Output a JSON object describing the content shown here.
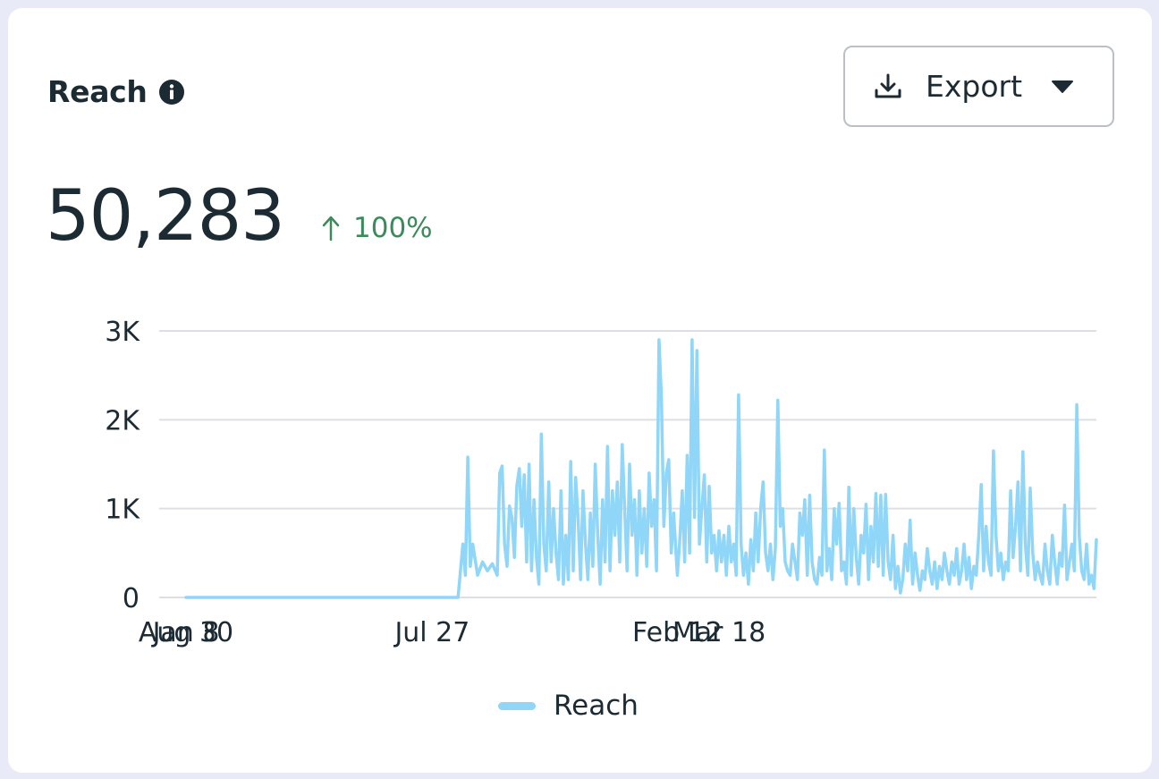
{
  "card": {
    "title": "Reach",
    "metric_value": "50,283",
    "delta": "100%",
    "export_label": "Export"
  },
  "colors": {
    "line": "#8fd6f8",
    "grid": "#dcdfe3",
    "positive": "#3b8a5a",
    "text": "#1c2b33"
  },
  "icons": [
    "info-icon",
    "download-icon",
    "caret-down-icon",
    "arrow-up-icon"
  ],
  "chart_data": {
    "type": "line",
    "title": "",
    "xlabel": "",
    "ylabel": "",
    "ylim": [
      0,
      3000
    ],
    "yticks": [
      0,
      1000,
      2000,
      3000
    ],
    "ytick_labels": [
      "0",
      "1K",
      "2K",
      "3K"
    ],
    "xticks": [
      "Jan 8",
      "Jul 27",
      "Feb 12",
      "Aug 30",
      "Mar 18"
    ],
    "grid": true,
    "legend_position": "bottom",
    "series": [
      {
        "name": "Reach",
        "points": [
          [
            "Jan 8",
            0
          ],
          [
            "Jul 27",
            0
          ],
          [
            "Aug 17",
            0
          ],
          [
            "Aug 19",
            300
          ],
          [
            "Aug 21",
            600
          ],
          [
            "Aug 23",
            250
          ],
          [
            "Aug 25",
            1580
          ],
          [
            "Aug 27",
            350
          ],
          [
            "Aug 29",
            600
          ],
          [
            "Sep 2",
            250
          ],
          [
            "Sep 6",
            400
          ],
          [
            "Sep 10",
            300
          ],
          [
            "Sep 14",
            380
          ],
          [
            "Sep 18",
            250
          ],
          [
            "Sep 20",
            1400
          ],
          [
            "Sep 22",
            1480
          ],
          [
            "Sep 24",
            600
          ],
          [
            "Sep 26",
            350
          ],
          [
            "Sep 28",
            1030
          ],
          [
            "Sep 30",
            900
          ],
          [
            "Oct 2",
            450
          ],
          [
            "Oct 4",
            1250
          ],
          [
            "Oct 6",
            1450
          ],
          [
            "Oct 8",
            800
          ],
          [
            "Oct 10",
            1380
          ],
          [
            "Oct 12",
            400
          ],
          [
            "Oct 14",
            1500
          ],
          [
            "Oct 16",
            300
          ],
          [
            "Oct 18",
            1100
          ],
          [
            "Oct 20",
            450
          ],
          [
            "Oct 22",
            150
          ],
          [
            "Oct 24",
            1840
          ],
          [
            "Oct 26",
            600
          ],
          [
            "Oct 28",
            300
          ],
          [
            "Oct 30",
            1300
          ],
          [
            "Nov 1",
            400
          ],
          [
            "Nov 3",
            1000
          ],
          [
            "Nov 5",
            500
          ],
          [
            "Nov 7",
            200
          ],
          [
            "Nov 9",
            1200
          ],
          [
            "Nov 11",
            150
          ],
          [
            "Nov 13",
            700
          ],
          [
            "Nov 15",
            200
          ],
          [
            "Nov 17",
            1530
          ],
          [
            "Nov 19",
            300
          ],
          [
            "Nov 21",
            1350
          ],
          [
            "Nov 23",
            900
          ],
          [
            "Nov 25",
            200
          ],
          [
            "Nov 27",
            1200
          ],
          [
            "Nov 29",
            600
          ],
          [
            "Dec 1",
            200
          ],
          [
            "Dec 3",
            950
          ],
          [
            "Dec 5",
            350
          ],
          [
            "Dec 7",
            1500
          ],
          [
            "Dec 9",
            700
          ],
          [
            "Dec 11",
            150
          ],
          [
            "Dec 13",
            1100
          ],
          [
            "Dec 15",
            400
          ],
          [
            "Dec 17",
            1700
          ],
          [
            "Dec 19",
            300
          ],
          [
            "Dec 21",
            1200
          ],
          [
            "Dec 23",
            700
          ],
          [
            "Dec 25",
            1300
          ],
          [
            "Dec 27",
            400
          ],
          [
            "Dec 29",
            1720
          ],
          [
            "Dec 31",
            1000
          ],
          [
            "Jan 2",
            300
          ],
          [
            "Jan 4",
            1500
          ],
          [
            "Jan 6",
            700
          ],
          [
            "Jan 8",
            1100
          ],
          [
            "Jan 10",
            250
          ],
          [
            "Jan 12",
            1200
          ],
          [
            "Jan 14",
            500
          ],
          [
            "Jan 16",
            1000
          ],
          [
            "Jan 18",
            350
          ],
          [
            "Jan 20",
            1400
          ],
          [
            "Jan 22",
            800
          ],
          [
            "Jan 24",
            1100
          ],
          [
            "Jan 26",
            300
          ],
          [
            "Jan 28",
            2900
          ],
          [
            "Jan 30",
            2250
          ],
          [
            "Feb 1",
            800
          ],
          [
            "Feb 3",
            1400
          ],
          [
            "Feb 5",
            1550
          ],
          [
            "Feb 7",
            500
          ],
          [
            "Feb 9",
            950
          ],
          [
            "Feb 12",
            250
          ],
          [
            "Feb 14",
            650
          ],
          [
            "Feb 16",
            1200
          ],
          [
            "Feb 18",
            400
          ],
          [
            "Feb 20",
            1600
          ],
          [
            "Feb 22",
            500
          ],
          [
            "Feb 24",
            2900
          ],
          [
            "Feb 26",
            900
          ],
          [
            "Feb 28",
            2780
          ],
          [
            "Mar 2",
            600
          ],
          [
            "Mar 4",
            1000
          ],
          [
            "Mar 6",
            1380
          ],
          [
            "Mar 8",
            400
          ],
          [
            "Mar 10",
            1250
          ],
          [
            "Mar 12",
            500
          ],
          [
            "Mar 14",
            700
          ],
          [
            "Mar 16",
            300
          ],
          [
            "Mar 18",
            750
          ],
          [
            "Mar 20",
            400
          ],
          [
            "Mar 22",
            700
          ],
          [
            "Mar 24",
            250
          ],
          [
            "Mar 26",
            800
          ],
          [
            "Mar 28",
            400
          ],
          [
            "Mar 30",
            600
          ],
          [
            "Apr 1",
            250
          ],
          [
            "Apr 3",
            2280
          ],
          [
            "Apr 5",
            600
          ],
          [
            "Apr 7",
            250
          ],
          [
            "Apr 9",
            500
          ],
          [
            "Apr 11",
            150
          ],
          [
            "Apr 13",
            650
          ],
          [
            "Apr 15",
            300
          ],
          [
            "Apr 17",
            950
          ],
          [
            "Apr 19",
            400
          ],
          [
            "Apr 21",
            1000
          ],
          [
            "Apr 23",
            1300
          ],
          [
            "Apr 25",
            500
          ],
          [
            "Apr 27",
            300
          ],
          [
            "Apr 29",
            600
          ],
          [
            "May 1",
            200
          ],
          [
            "May 3",
            550
          ],
          [
            "May 5",
            2220
          ],
          [
            "May 7",
            800
          ],
          [
            "May 9",
            1000
          ],
          [
            "May 11",
            400
          ],
          [
            "May 13",
            300
          ],
          [
            "May 15",
            250
          ],
          [
            "May 17",
            600
          ],
          [
            "May 19",
            400
          ],
          [
            "May 21",
            200
          ],
          [
            "May 23",
            950
          ],
          [
            "May 25",
            700
          ],
          [
            "May 27",
            1100
          ],
          [
            "May 29",
            250
          ],
          [
            "May 31",
            1150
          ],
          [
            "Jun 2",
            400
          ],
          [
            "Jun 4",
            200
          ],
          [
            "Jun 6",
            150
          ],
          [
            "Jun 8",
            450
          ],
          [
            "Jun 10",
            250
          ],
          [
            "Jun 12",
            1660
          ],
          [
            "Jun 14",
            300
          ],
          [
            "Jun 16",
            550
          ],
          [
            "Jun 18",
            200
          ],
          [
            "Jun 20",
            1000
          ],
          [
            "Jun 22",
            600
          ],
          [
            "Jun 24",
            1060
          ],
          [
            "Jun 26",
            300
          ],
          [
            "Jun 28",
            400
          ],
          [
            "Jun 30",
            150
          ],
          [
            "Jul 2",
            1240
          ],
          [
            "Jul 4",
            250
          ],
          [
            "Jul 6",
            1000
          ],
          [
            "Jul 8",
            450
          ],
          [
            "Jul 10",
            150
          ],
          [
            "Jul 12",
            700
          ],
          [
            "Jul 14",
            500
          ],
          [
            "Jul 16",
            1050
          ],
          [
            "Jul 18",
            200
          ],
          [
            "Jul 20",
            800
          ],
          [
            "Jul 22",
            400
          ],
          [
            "Jul 24",
            1170
          ],
          [
            "Jul 26",
            350
          ],
          [
            "Jul 28",
            1150
          ],
          [
            "Jul 30",
            250
          ],
          [
            "Aug 1",
            1160
          ],
          [
            "Aug 3",
            400
          ],
          [
            "Aug 5",
            200
          ],
          [
            "Aug 7",
            700
          ],
          [
            "Aug 9",
            100
          ],
          [
            "Aug 11",
            350
          ],
          [
            "Aug 13",
            50
          ],
          [
            "Aug 15",
            200
          ],
          [
            "Aug 17",
            600
          ],
          [
            "Aug 19",
            300
          ],
          [
            "Aug 21",
            870
          ],
          [
            "Aug 23",
            150
          ],
          [
            "Aug 25",
            500
          ],
          [
            "Aug 27",
            250
          ],
          [
            "Aug 29",
            80
          ],
          [
            "Aug 31",
            300
          ],
          [
            "Sep 2",
            200
          ],
          [
            "Sep 4",
            550
          ],
          [
            "Sep 6",
            300
          ],
          [
            "Sep 8",
            150
          ],
          [
            "Sep 10",
            400
          ],
          [
            "Sep 12",
            100
          ],
          [
            "Sep 14",
            350
          ],
          [
            "Sep 16",
            200
          ],
          [
            "Sep 18",
            500
          ],
          [
            "Sep 20",
            300
          ],
          [
            "Sep 22",
            150
          ],
          [
            "Sep 24",
            400
          ],
          [
            "Sep 26",
            250
          ],
          [
            "Sep 28",
            550
          ],
          [
            "Sep 30",
            150
          ],
          [
            "Oct 2",
            300
          ],
          [
            "Oct 4",
            600
          ],
          [
            "Oct 6",
            200
          ],
          [
            "Oct 8",
            450
          ],
          [
            "Oct 10",
            100
          ],
          [
            "Oct 12",
            350
          ],
          [
            "Oct 14",
            250
          ],
          [
            "Oct 16",
            700
          ],
          [
            "Oct 18",
            1270
          ],
          [
            "Oct 20",
            300
          ],
          [
            "Oct 22",
            800
          ],
          [
            "Oct 24",
            400
          ],
          [
            "Oct 26",
            250
          ],
          [
            "Oct 28",
            1650
          ],
          [
            "Oct 30",
            700
          ],
          [
            "Nov 1",
            300
          ],
          [
            "Nov 3",
            500
          ],
          [
            "Nov 5",
            200
          ],
          [
            "Nov 7",
            400
          ],
          [
            "Nov 9",
            300
          ],
          [
            "Nov 11",
            1200
          ],
          [
            "Nov 13",
            450
          ],
          [
            "Nov 15",
            800
          ],
          [
            "Nov 17",
            1300
          ],
          [
            "Nov 19",
            300
          ],
          [
            "Nov 21",
            1640
          ],
          [
            "Nov 23",
            600
          ],
          [
            "Nov 25",
            250
          ],
          [
            "Nov 27",
            1230
          ],
          [
            "Nov 29",
            500
          ],
          [
            "Dec 1",
            200
          ],
          [
            "Dec 3",
            400
          ],
          [
            "Dec 5",
            250
          ],
          [
            "Dec 7",
            150
          ],
          [
            "Dec 9",
            600
          ],
          [
            "Dec 11",
            300
          ],
          [
            "Dec 13",
            150
          ],
          [
            "Dec 15",
            700
          ],
          [
            "Dec 17",
            400
          ],
          [
            "Dec 19",
            150
          ],
          [
            "Dec 21",
            500
          ],
          [
            "Dec 23",
            350
          ],
          [
            "Dec 25",
            1040
          ],
          [
            "Dec 27",
            200
          ],
          [
            "Dec 29",
            400
          ],
          [
            "Dec 31",
            600
          ],
          [
            "Jan 2",
            300
          ],
          [
            "Jan 4",
            2170
          ],
          [
            "Jan 6",
            700
          ],
          [
            "Jan 8",
            300
          ],
          [
            "Jan 10",
            200
          ],
          [
            "Jan 12",
            600
          ],
          [
            "Jan 14",
            150
          ],
          [
            "Jan 16",
            250
          ],
          [
            "Jan 18",
            100
          ],
          [
            "Jan 20",
            650
          ]
        ]
      }
    ]
  }
}
